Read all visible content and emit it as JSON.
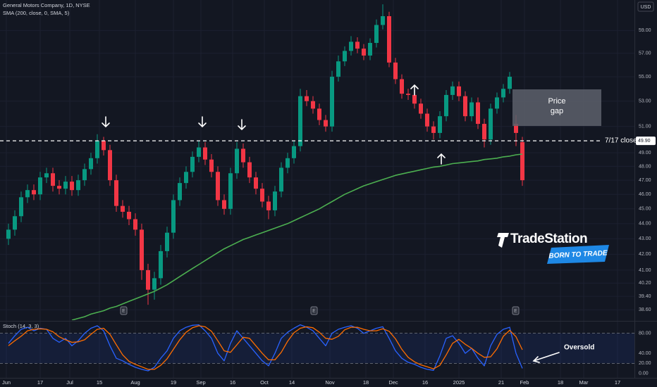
{
  "chart_data": [
    {
      "type": "candlestick",
      "title": "General Motors Company, 1D, NYSE",
      "currency": "USD",
      "yscale": "log",
      "grid": true,
      "up_color": "#089981",
      "down_color": "#f23645",
      "x": [
        1,
        4,
        7,
        10,
        13,
        16,
        19,
        22,
        25,
        28,
        31,
        34,
        37,
        40,
        43,
        46,
        49,
        52,
        55,
        58,
        61,
        64,
        67,
        70,
        73,
        76,
        79,
        82,
        85,
        88,
        91,
        94,
        97,
        100,
        103,
        106,
        109,
        112,
        115,
        118,
        121,
        124,
        127,
        130,
        133,
        136,
        139,
        142,
        145,
        148,
        151,
        154,
        157,
        160,
        163,
        166,
        169,
        172,
        175,
        178,
        181,
        184,
        187,
        190,
        193,
        196,
        199,
        202,
        205,
        208,
        211,
        214,
        217,
        220,
        223,
        226,
        229,
        232,
        235,
        238,
        241,
        244
      ],
      "open": [
        43.0,
        43.6,
        44.5,
        45.8,
        46.3,
        46.0,
        47.2,
        47.5,
        46.6,
        46.4,
        46.9,
        46.3,
        47.0,
        47.8,
        48.6,
        49.9,
        49.2,
        47.0,
        45.2,
        44.8,
        44.3,
        43.6,
        41.0,
        39.8,
        40.5,
        42.2,
        43.4,
        45.6,
        46.8,
        47.6,
        48.7,
        49.4,
        48.5,
        47.6,
        45.6,
        45.0,
        47.5,
        49.3,
        48.3,
        47.2,
        46.4,
        45.5,
        44.9,
        46.2,
        47.9,
        48.6,
        49.5,
        53.4,
        53.0,
        52.4,
        51.5,
        51.0,
        55.0,
        56.3,
        57.2,
        58.0,
        57.4,
        56.8,
        57.9,
        59.5,
        60.3,
        56.2,
        54.8,
        53.6,
        53.5,
        52.8,
        52.0,
        51.0,
        50.5,
        51.8,
        53.5,
        54.2,
        53.4,
        51.8,
        52.9,
        51.2,
        50.0,
        52.4,
        53.3,
        54.0,
        51.2,
        49.8
      ],
      "high": [
        44.0,
        44.9,
        46.2,
        46.7,
        46.7,
        47.6,
        47.9,
        47.9,
        47.0,
        47.3,
        47.3,
        47.4,
        48.2,
        49.0,
        50.4,
        50.2,
        49.6,
        47.4,
        45.6,
        45.2,
        44.7,
        44.0,
        41.4,
        40.9,
        42.6,
        43.8,
        46.0,
        47.2,
        48.0,
        49.1,
        49.9,
        49.8,
        48.9,
        48.0,
        46.0,
        47.9,
        49.8,
        49.7,
        48.7,
        47.6,
        46.8,
        45.9,
        46.6,
        48.3,
        49.0,
        49.9,
        54.0,
        53.9,
        53.4,
        52.8,
        51.9,
        55.5,
        56.8,
        57.6,
        58.5,
        58.4,
        57.8,
        58.3,
        60.0,
        61.4,
        60.7,
        56.6,
        55.2,
        54.0,
        53.9,
        53.2,
        52.4,
        51.4,
        52.2,
        53.9,
        54.6,
        54.6,
        53.8,
        53.3,
        53.3,
        51.6,
        52.8,
        53.7,
        54.4,
        55.4,
        51.9,
        50.2
      ],
      "low": [
        42.6,
        43.2,
        44.1,
        45.4,
        45.6,
        45.6,
        46.8,
        46.2,
        46.0,
        46.0,
        45.9,
        45.9,
        46.6,
        47.4,
        48.2,
        48.8,
        46.6,
        44.8,
        44.4,
        43.9,
        43.2,
        40.4,
        38.9,
        39.2,
        40.1,
        41.8,
        43.0,
        45.2,
        46.4,
        47.2,
        48.3,
        48.1,
        47.2,
        45.2,
        44.6,
        44.6,
        47.1,
        47.9,
        46.8,
        46.0,
        45.1,
        44.3,
        44.5,
        45.8,
        47.5,
        48.2,
        49.1,
        52.6,
        52.0,
        51.1,
        50.6,
        50.6,
        54.6,
        55.9,
        56.8,
        57.0,
        56.4,
        56.4,
        57.5,
        59.1,
        55.8,
        54.4,
        53.2,
        53.1,
        52.4,
        51.6,
        50.6,
        50.0,
        50.1,
        51.4,
        53.1,
        53.0,
        51.4,
        51.4,
        50.8,
        49.4,
        49.6,
        52.0,
        52.9,
        53.6,
        49.5,
        46.6
      ],
      "close": [
        43.6,
        44.5,
        45.8,
        46.3,
        46.0,
        47.2,
        47.5,
        46.6,
        46.4,
        46.9,
        46.3,
        47.0,
        47.8,
        48.6,
        49.9,
        49.2,
        47.0,
        45.2,
        44.8,
        44.3,
        43.6,
        41.0,
        39.8,
        40.5,
        42.2,
        43.4,
        45.6,
        46.8,
        47.6,
        48.7,
        49.4,
        48.5,
        47.6,
        45.6,
        45.0,
        47.5,
        49.3,
        48.3,
        47.2,
        46.4,
        45.5,
        44.9,
        46.2,
        47.9,
        48.6,
        49.5,
        53.4,
        53.0,
        52.4,
        51.5,
        51.0,
        55.0,
        56.3,
        57.2,
        58.0,
        57.4,
        56.8,
        57.9,
        59.5,
        60.3,
        56.2,
        54.8,
        53.6,
        53.5,
        52.8,
        52.0,
        51.0,
        50.5,
        51.8,
        53.5,
        54.2,
        53.4,
        51.8,
        52.9,
        51.2,
        50.0,
        52.4,
        53.3,
        54.0,
        55.0,
        50.5,
        47.0
      ],
      "series": [
        {
          "name": "SMA (200, close, 0, SMA, 5)",
          "color": "#4caf50",
          "values": [
            null,
            null,
            null,
            null,
            null,
            null,
            null,
            null,
            null,
            null,
            38.0,
            38.1,
            38.2,
            38.35,
            38.45,
            38.55,
            38.7,
            38.8,
            38.95,
            39.1,
            39.25,
            39.4,
            39.55,
            39.7,
            39.9,
            40.1,
            40.35,
            40.6,
            40.85,
            41.1,
            41.35,
            41.6,
            41.85,
            42.1,
            42.35,
            42.55,
            42.75,
            42.95,
            43.1,
            43.25,
            43.4,
            43.55,
            43.7,
            43.85,
            44.0,
            44.2,
            44.4,
            44.6,
            44.8,
            45.0,
            45.25,
            45.5,
            45.75,
            46.0,
            46.2,
            46.4,
            46.6,
            46.75,
            46.9,
            47.05,
            47.2,
            47.35,
            47.45,
            47.55,
            47.65,
            47.75,
            47.85,
            47.95,
            48.0,
            48.1,
            48.2,
            48.25,
            48.3,
            48.35,
            48.4,
            48.5,
            48.55,
            48.6,
            48.7,
            48.75,
            48.85,
            48.9
          ]
        }
      ],
      "xlim": [
        -3,
        297
      ],
      "xticks": [
        {
          "value": 0,
          "label": "Jun"
        },
        {
          "value": 16,
          "label": "17"
        },
        {
          "value": 30,
          "label": "Jul"
        },
        {
          "value": 44,
          "label": "15"
        },
        {
          "value": 61,
          "label": "Aug"
        },
        {
          "value": 79,
          "label": "19"
        },
        {
          "value": 92,
          "label": "Sep"
        },
        {
          "value": 107,
          "label": "16"
        },
        {
          "value": 122,
          "label": "Oct"
        },
        {
          "value": 135,
          "label": "14"
        },
        {
          "value": 153,
          "label": "Nov"
        },
        {
          "value": 170,
          "label": "18"
        },
        {
          "value": 183,
          "label": "Dec"
        },
        {
          "value": 198,
          "label": "16"
        },
        {
          "value": 214,
          "label": "2025"
        },
        {
          "value": 234,
          "label": "21"
        },
        {
          "value": 245,
          "label": "Feb"
        },
        {
          "value": 262,
          "label": "18"
        },
        {
          "value": 273,
          "label": "Mar"
        },
        {
          "value": 289,
          "label": "17"
        }
      ],
      "ylim": [
        38.0,
        61.8
      ],
      "yticks": [
        {
          "value": 59,
          "label": "59.00"
        },
        {
          "value": 57,
          "label": "57.00"
        },
        {
          "value": 55,
          "label": "55.00"
        },
        {
          "value": 53,
          "label": "53.00"
        },
        {
          "value": 51,
          "label": "51.00"
        },
        {
          "value": 49,
          "label": "49.00"
        },
        {
          "value": 48,
          "label": "48.00"
        },
        {
          "value": 47,
          "label": "47.00"
        },
        {
          "value": 46,
          "label": "46.00"
        },
        {
          "value": 45,
          "label": "45.00"
        },
        {
          "value": 44,
          "label": "44.00"
        },
        {
          "value": 43,
          "label": "43.00"
        },
        {
          "value": 42,
          "label": "42.00"
        },
        {
          "value": 41,
          "label": "41.00"
        },
        {
          "value": 40.2,
          "label": "40.20"
        },
        {
          "value": 39.4,
          "label": "39.40"
        },
        {
          "value": 38.6,
          "label": "38.60"
        }
      ],
      "reference_line": {
        "value": 49.9,
        "label": "7/17 close",
        "price_label": "49.90"
      },
      "annotations": {
        "price_gap": [
          "Price",
          "gap"
        ],
        "oversold": "Oversold",
        "earnings": "E",
        "logo": "TradeStation",
        "slogan": "BORN TO TRADE"
      }
    },
    {
      "type": "line",
      "title": "Stoch (14, 3, 3)",
      "series": [
        {
          "color": "#2962ff",
          "values": [
            60,
            75,
            88,
            92,
            85,
            90,
            88,
            70,
            62,
            70,
            55,
            65,
            80,
            90,
            95,
            85,
            55,
            30,
            25,
            18,
            12,
            8,
            5,
            12,
            30,
            45,
            70,
            85,
            92,
            96,
            97,
            85,
            70,
            40,
            25,
            60,
            85,
            70,
            55,
            40,
            25,
            15,
            40,
            70,
            82,
            90,
            97,
            92,
            85,
            70,
            55,
            80,
            88,
            92,
            95,
            90,
            80,
            85,
            90,
            93,
            70,
            45,
            30,
            22,
            18,
            12,
            8,
            6,
            35,
            70,
            75,
            60,
            40,
            50,
            30,
            15,
            55,
            78,
            88,
            92,
            40,
            10
          ]
        },
        {
          "color": "#ff6d00",
          "values": [
            55,
            65,
            74,
            85,
            88,
            89,
            88,
            83,
            73,
            67,
            62,
            63,
            67,
            78,
            88,
            90,
            78,
            57,
            37,
            24,
            18,
            13,
            8,
            8,
            16,
            29,
            48,
            67,
            82,
            91,
            95,
            93,
            84,
            65,
            45,
            42,
            57,
            72,
            70,
            55,
            40,
            27,
            27,
            42,
            64,
            81,
            90,
            93,
            91,
            82,
            70,
            68,
            74,
            87,
            92,
            92,
            88,
            85,
            85,
            89,
            84,
            69,
            48,
            32,
            23,
            17,
            13,
            9,
            16,
            37,
            60,
            68,
            58,
            50,
            40,
            32,
            33,
            49,
            74,
            86,
            73,
            47
          ]
        }
      ],
      "ylim": [
        -2,
        102
      ],
      "yticks": [
        {
          "value": 80,
          "label": "80.00"
        },
        {
          "value": 40,
          "label": "40.00"
        },
        {
          "value": 20,
          "label": "20.00"
        },
        {
          "value": 0,
          "label": "0.00"
        }
      ],
      "bands": [
        20,
        80
      ]
    }
  ]
}
